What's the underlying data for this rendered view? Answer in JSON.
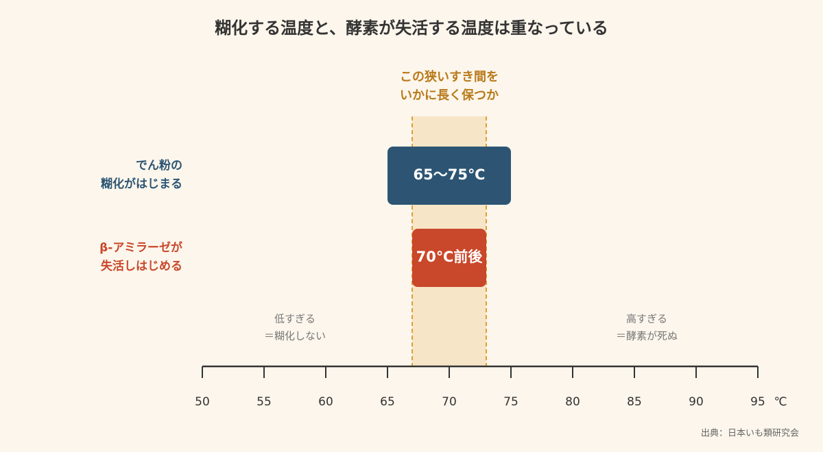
{
  "chart_data": {
    "type": "range",
    "title": "糊化する温度と、酵素が失活する温度は重なっている",
    "xlim": [
      50,
      95
    ],
    "xticks": [
      50,
      55,
      60,
      65,
      70,
      75,
      80,
      85,
      90,
      95
    ],
    "x_unit": "℃",
    "highlight": {
      "range": [
        67,
        73
      ],
      "label": [
        "この狭いすき間を",
        "いかに長く保つか"
      ],
      "color": "#f6e5c6",
      "line_color": "#e0a030",
      "label_color": "#b87a1a"
    },
    "series": [
      {
        "name": [
          "でん粉の",
          "糊化がはじまる"
        ],
        "color": "#2d5573",
        "values": [
          65,
          75
        ],
        "value_label": "65〜75℃"
      },
      {
        "name": [
          "β-アミラーゼが",
          "失活しはじめる"
        ],
        "color": "#c9472a",
        "values": [
          67,
          73
        ],
        "value_label": "70℃前後"
      }
    ],
    "annotations": [
      [
        "低すぎる",
        "＝糊化しない"
      ],
      [
        "高すぎる",
        "＝酵素が死ぬ"
      ]
    ],
    "source": "出典：日本いも類研究会"
  }
}
